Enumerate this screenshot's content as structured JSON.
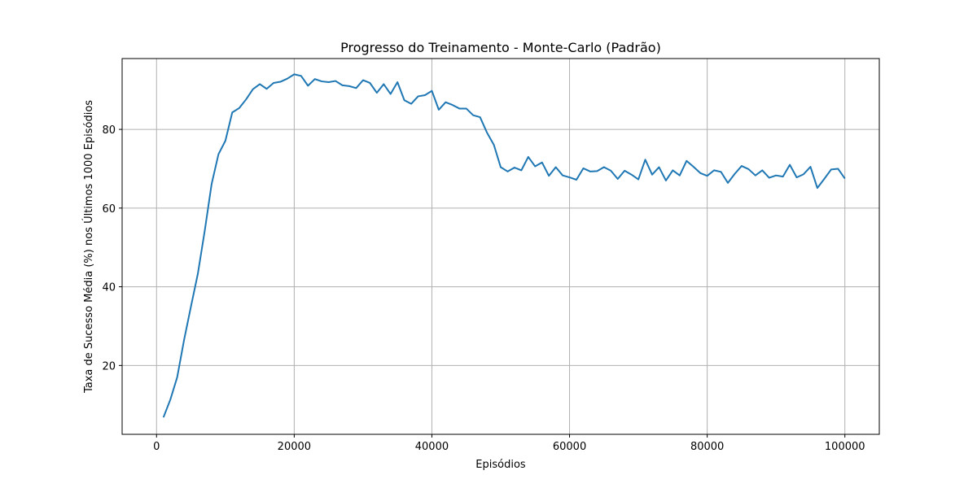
{
  "chart_data": {
    "type": "line",
    "title": "Progresso do Treinamento - Monte-Carlo (Padrão)",
    "xlabel": "Episódios",
    "ylabel": "Taxa de Sucesso Média (%) nos Últimos 1000 Episódios",
    "xlim": [
      -5000,
      105000
    ],
    "ylim": [
      2.5,
      98.0
    ],
    "xticks": [
      0,
      20000,
      40000,
      60000,
      80000,
      100000
    ],
    "xtick_labels": [
      "0",
      "20000",
      "40000",
      "60000",
      "80000",
      "100000"
    ],
    "yticks": [
      20,
      40,
      60,
      80
    ],
    "ytick_labels": [
      "20",
      "40",
      "60",
      "80"
    ],
    "grid": true,
    "line_color": "#1f77b4",
    "grid_color": "#b0b0b0",
    "series": [
      {
        "x": [
          1000,
          2000,
          3000,
          4000,
          5000,
          6000,
          7000,
          8000,
          9000,
          10000,
          11000,
          12000,
          13000,
          14000,
          15000,
          16000,
          17000,
          18000,
          19000,
          20000,
          21000,
          22000,
          23000,
          24000,
          25000,
          26000,
          27000,
          28000,
          29000,
          30000,
          31000,
          32000,
          33000,
          34000,
          35000,
          36000,
          37000,
          38000,
          39000,
          40000,
          41000,
          42000,
          43000,
          44000,
          45000,
          46000,
          47000,
          48000,
          49000,
          50000,
          51000,
          52000,
          53000,
          54000,
          55000,
          56000,
          57000,
          58000,
          59000,
          60000,
          61000,
          62000,
          63000,
          64000,
          65000,
          66000,
          67000,
          68000,
          69000,
          70000,
          71000,
          72000,
          73000,
          74000,
          75000,
          76000,
          77000,
          78000,
          79000,
          80000,
          81000,
          82000,
          83000,
          84000,
          85000,
          86000,
          87000,
          88000,
          89000,
          90000,
          91000,
          92000,
          93000,
          94000,
          95000,
          96000,
          97000,
          98000,
          99000,
          100000
        ],
        "y": [
          6.8,
          11.3,
          17.0,
          26.5,
          35.0,
          43.3,
          54.2,
          66.1,
          73.7,
          77.1,
          84.3,
          85.4,
          87.6,
          90.2,
          91.5,
          90.3,
          91.8,
          92.1,
          92.9,
          94.0,
          93.6,
          91.1,
          92.8,
          92.2,
          92.0,
          92.3,
          91.2,
          91.0,
          90.5,
          92.5,
          91.8,
          89.3,
          91.5,
          89.0,
          92.0,
          87.4,
          86.5,
          88.4,
          88.7,
          89.8,
          85.0,
          86.9,
          86.2,
          85.3,
          85.3,
          83.6,
          83.1,
          79.2,
          76.1,
          70.4,
          69.3,
          70.3,
          69.6,
          73.0,
          70.6,
          71.6,
          68.2,
          70.4,
          68.3,
          67.8,
          67.2,
          70.1,
          69.3,
          69.4,
          70.4,
          69.5,
          67.4,
          69.5,
          68.5,
          67.3,
          72.3,
          68.5,
          70.4,
          67.0,
          69.6,
          68.3,
          72.0,
          70.5,
          68.9,
          68.2,
          69.6,
          69.2,
          66.4,
          68.7,
          70.7,
          69.9,
          68.3,
          69.6,
          67.7,
          68.3,
          68.0,
          71.0,
          67.8,
          68.6,
          70.5,
          65.1,
          67.4,
          69.8,
          70.0,
          67.5
        ]
      }
    ]
  }
}
